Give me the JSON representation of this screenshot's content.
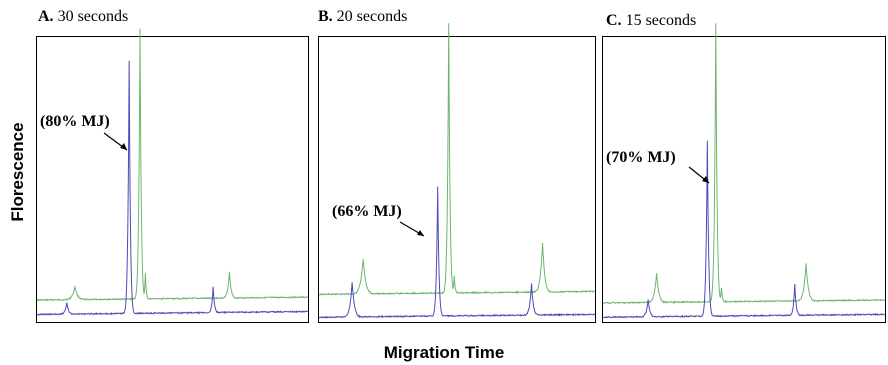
{
  "chart_data": {
    "type": "line",
    "ylabel": "Florescence",
    "xlabel": "Migration Time",
    "colors": {
      "green": "#6db56d",
      "blue": "#4a4ab8"
    },
    "panels": [
      {
        "letter": "A.",
        "title": "30 seconds",
        "annotation": "(80% MJ)",
        "green": {
          "baseline": 0.92,
          "peaks": [
            [
              0.14,
              0.045,
              0.06
            ],
            [
              0.38,
              0.94,
              0.03
            ],
            [
              0.4,
              0.09,
              0.02
            ],
            [
              0.71,
              0.09,
              0.04
            ]
          ]
        },
        "blue": {
          "baseline": 0.97,
          "peaks": [
            [
              0.11,
              0.04,
              0.04
            ],
            [
              0.34,
              0.88,
              0.03
            ],
            [
              0.65,
              0.09,
              0.03
            ]
          ]
        }
      },
      {
        "letter": "B.",
        "title": "20 seconds",
        "annotation": "(66% MJ)",
        "green": {
          "baseline": 0.9,
          "peaks": [
            [
              0.16,
              0.12,
              0.06
            ],
            [
              0.47,
              0.94,
              0.03
            ],
            [
              0.49,
              0.06,
              0.02
            ],
            [
              0.81,
              0.17,
              0.05
            ]
          ]
        },
        "blue": {
          "baseline": 0.98,
          "peaks": [
            [
              0.12,
              0.12,
              0.05
            ],
            [
              0.43,
              0.45,
              0.03
            ],
            [
              0.77,
              0.11,
              0.04
            ]
          ]
        }
      },
      {
        "letter": "C.",
        "title": "15 seconds",
        "annotation": "(70% MJ)",
        "green": {
          "baseline": 0.93,
          "peaks": [
            [
              0.19,
              0.1,
              0.05
            ],
            [
              0.4,
              0.97,
              0.03
            ],
            [
              0.42,
              0.05,
              0.02
            ],
            [
              0.72,
              0.13,
              0.05
            ]
          ]
        },
        "blue": {
          "baseline": 0.98,
          "peaks": [
            [
              0.16,
              0.06,
              0.04
            ],
            [
              0.37,
              0.61,
              0.03
            ],
            [
              0.68,
              0.11,
              0.03
            ]
          ]
        }
      }
    ]
  }
}
